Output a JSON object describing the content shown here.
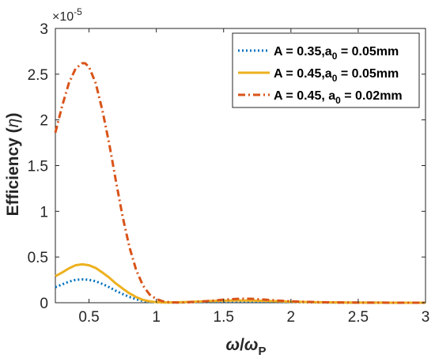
{
  "chart_data": {
    "type": "line",
    "xlabel_parts": {
      "omega": "ω",
      "slash": "/",
      "sub_omega": "ω",
      "sub": "P"
    },
    "ylabel_parts": {
      "text": "Efficiency (",
      "symbol": "η",
      "close": ")"
    },
    "y_exponent": {
      "base": "×10",
      "power": "-5"
    },
    "xlim": [
      0.25,
      3.0
    ],
    "ylim": [
      0,
      3
    ],
    "xticks": [
      0.5,
      1,
      1.5,
      2,
      2.5,
      3
    ],
    "xtick_labels": [
      "0.5",
      "1",
      "1.5",
      "2",
      "2.5",
      "3"
    ],
    "yticks": [
      0,
      0.5,
      1,
      1.5,
      2,
      2.5,
      3
    ],
    "ytick_labels": [
      "0",
      "0.5",
      "1",
      "1.5",
      "2",
      "2.5",
      "3"
    ],
    "grid": false,
    "legend_position": "top-right",
    "series": [
      {
        "name_parts": [
          "A = 0.35,a",
          "0",
          " = 0.05mm"
        ],
        "color": "#0072bd",
        "style": "dotted",
        "x": [
          0.25,
          0.3,
          0.35,
          0.4,
          0.45,
          0.5,
          0.55,
          0.6,
          0.65,
          0.7,
          0.75,
          0.8,
          0.85,
          0.9,
          0.95,
          1.0,
          1.05,
          1.1,
          1.2,
          1.3,
          1.4,
          1.5,
          1.6,
          1.7,
          1.8,
          1.9,
          2.0,
          2.2,
          2.4,
          2.6,
          2.8,
          3.0
        ],
        "y": [
          0.17,
          0.2,
          0.23,
          0.25,
          0.255,
          0.25,
          0.235,
          0.205,
          0.17,
          0.13,
          0.095,
          0.063,
          0.038,
          0.02,
          0.009,
          0.004,
          0.002,
          0.002,
          0.004,
          0.007,
          0.01,
          0.013,
          0.015,
          0.015,
          0.013,
          0.01,
          0.007,
          0.003,
          0.001,
          0.001,
          0.0,
          0.0
        ]
      },
      {
        "name_parts": [
          "A = 0.45,a",
          "0",
          " = 0.05mm"
        ],
        "color": "#edb120",
        "style": "solid",
        "x": [
          0.25,
          0.3,
          0.35,
          0.4,
          0.45,
          0.5,
          0.55,
          0.6,
          0.65,
          0.7,
          0.75,
          0.8,
          0.85,
          0.9,
          0.95,
          1.0,
          1.05,
          1.1,
          1.2,
          1.3,
          1.4,
          1.5,
          1.6,
          1.7,
          1.8,
          1.9,
          2.0,
          2.2,
          2.4,
          2.6,
          2.8,
          3.0
        ],
        "y": [
          0.29,
          0.33,
          0.375,
          0.41,
          0.42,
          0.41,
          0.38,
          0.33,
          0.275,
          0.21,
          0.155,
          0.103,
          0.062,
          0.032,
          0.015,
          0.006,
          0.003,
          0.003,
          0.006,
          0.012,
          0.018,
          0.023,
          0.025,
          0.024,
          0.021,
          0.016,
          0.011,
          0.005,
          0.002,
          0.001,
          0.0,
          0.0
        ]
      },
      {
        "name_parts": [
          "A = 0.45, a",
          "0",
          " = 0.02mm"
        ],
        "color": "#d95319",
        "style": "dashdot",
        "x": [
          0.25,
          0.3,
          0.35,
          0.4,
          0.45,
          0.47,
          0.5,
          0.55,
          0.6,
          0.65,
          0.7,
          0.75,
          0.8,
          0.85,
          0.9,
          0.95,
          1.0,
          1.05,
          1.1,
          1.15,
          1.2,
          1.3,
          1.4,
          1.5,
          1.6,
          1.65,
          1.7,
          1.8,
          1.9,
          2.0,
          2.2,
          2.4,
          2.6,
          2.8,
          3.0
        ],
        "y": [
          1.86,
          2.15,
          2.4,
          2.56,
          2.62,
          2.62,
          2.58,
          2.4,
          2.1,
          1.74,
          1.33,
          0.94,
          0.61,
          0.36,
          0.19,
          0.09,
          0.04,
          0.015,
          0.005,
          0.002,
          0.003,
          0.01,
          0.02,
          0.033,
          0.042,
          0.044,
          0.043,
          0.035,
          0.024,
          0.015,
          0.006,
          0.002,
          0.001,
          0.0,
          0.0
        ]
      }
    ]
  }
}
